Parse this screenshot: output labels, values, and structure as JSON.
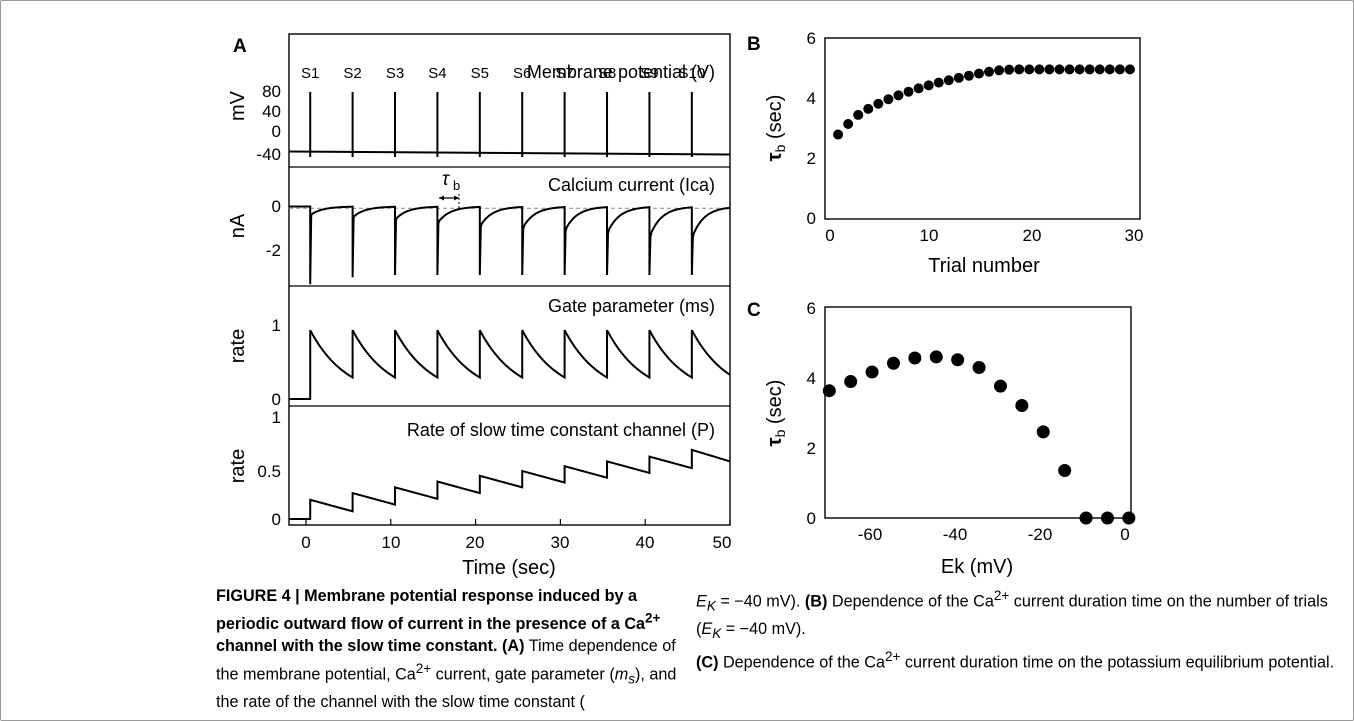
{
  "panels": {
    "A": {
      "letter": "A",
      "xlabel": "Time (sec)",
      "xticks": [
        "0",
        "10",
        "20",
        "30",
        "40",
        "50"
      ],
      "stim_labels": [
        "S1",
        "S2",
        "S3",
        "S4",
        "S5",
        "S6",
        "S7",
        "S8",
        "S9",
        "S10"
      ],
      "tau_label": "τ",
      "tau_sub": "b",
      "subplots": [
        {
          "title": "Membrane potential (V)",
          "ylabel": "mV",
          "yticks": [
            "80",
            "40",
            "0",
            "-40"
          ]
        },
        {
          "title": "Calcium current (Ica)",
          "ylabel": "nA",
          "yticks": [
            "0",
            "-2"
          ]
        },
        {
          "title": "Gate parameter (ms)",
          "ylabel": "rate",
          "yticks": [
            "1",
            "0"
          ]
        },
        {
          "title": "Rate of slow time constant channel (P)",
          "ylabel": "rate",
          "yticks": [
            "1",
            "0.5",
            "0"
          ]
        }
      ]
    },
    "B": {
      "letter": "B",
      "xlabel": "Trial number",
      "ylabel_main": "τ",
      "ylabel_sub": "b",
      "ylabel_unit": " (sec)",
      "xticks": [
        "0",
        "10",
        "20",
        "30"
      ],
      "yticks": [
        "6",
        "4",
        "2",
        "0"
      ]
    },
    "C": {
      "letter": "C",
      "xlabel": "Ek (mV)",
      "ylabel_main": "τ",
      "ylabel_sub": "b",
      "ylabel_unit": " (sec)",
      "xticks": [
        "-60",
        "-40",
        "-20",
        "0"
      ],
      "yticks": [
        "6",
        "4",
        "2",
        "0"
      ]
    }
  },
  "chart_data": [
    {
      "panel": "A",
      "type": "line",
      "title": "Membrane potential (V)",
      "xlabel": "Time (sec)",
      "ylabel": "mV",
      "xlim": [
        -2,
        50
      ],
      "ylim": [
        -60,
        130
      ],
      "stimulus_times": [
        0.5,
        5.5,
        10.5,
        15.5,
        20.5,
        25.5,
        30.5,
        35.5,
        40.5,
        45.5
      ],
      "baseline_mV": -30,
      "spike_peak_mV": 65,
      "spike_trough_mV": -40
    },
    {
      "panel": "A",
      "type": "line",
      "title": "Calcium current (Ica)",
      "xlabel": "Time (sec)",
      "ylabel": "nA",
      "xlim": [
        -2,
        50
      ],
      "ylim": [
        -3.7,
        1.1
      ],
      "stimulus_times": [
        0.5,
        5.5,
        10.5,
        15.5,
        20.5,
        25.5,
        30.5,
        35.5,
        40.5,
        45.5
      ],
      "spike_min_nA": [
        -3.4,
        -3.1,
        -3.0,
        -3.0,
        -3.0,
        -3.0,
        -3.0,
        -3.0,
        -3.0,
        -3.0
      ],
      "post_spike_current_nA": [
        -0.4,
        -0.5,
        -0.6,
        -0.75,
        -0.9,
        -1.0,
        -1.1,
        -1.2,
        -1.35,
        -1.4
      ],
      "dashed_level_nA": -0.1
    },
    {
      "panel": "A",
      "type": "line",
      "title": "Gate parameter (ms)",
      "xlabel": "Time (sec)",
      "ylabel": "rate",
      "xlim": [
        -2,
        50
      ],
      "ylim": [
        -0.1,
        1.25
      ],
      "stimulus_times": [
        0.5,
        5.5,
        10.5,
        15.5,
        20.5,
        25.5,
        30.5,
        35.5,
        40.5,
        45.5
      ],
      "peak": 0.93,
      "trough_before_next": 0.3
    },
    {
      "panel": "A",
      "type": "line",
      "title": "Rate of slow time constant channel (P)",
      "xlabel": "Time (sec)",
      "ylabel": "rate",
      "xlim": [
        -2,
        50
      ],
      "ylim": [
        -0.05,
        1.15
      ],
      "stimulus_times": [
        0.5,
        5.5,
        10.5,
        15.5,
        20.5,
        25.5,
        30.5,
        35.5,
        40.5,
        45.5
      ],
      "peaks": [
        0.2,
        0.27,
        0.33,
        0.39,
        0.45,
        0.5,
        0.55,
        0.6,
        0.65,
        0.72
      ],
      "end_value": 0.6
    },
    {
      "panel": "B",
      "type": "scatter",
      "xlabel": "Trial number",
      "ylabel": "τb (sec)",
      "xlim": [
        -0.3,
        31
      ],
      "ylim": [
        0,
        6
      ],
      "x": [
        1,
        2,
        3,
        4,
        5,
        6,
        7,
        8,
        9,
        10,
        11,
        12,
        13,
        14,
        15,
        16,
        17,
        18,
        19,
        20,
        21,
        22,
        23,
        24,
        25,
        26,
        27,
        28,
        29,
        30
      ],
      "y": [
        2.8,
        3.15,
        3.45,
        3.65,
        3.82,
        3.97,
        4.1,
        4.22,
        4.33,
        4.43,
        4.52,
        4.6,
        4.68,
        4.75,
        4.82,
        4.88,
        4.93,
        4.95,
        4.96,
        4.96,
        4.96,
        4.96,
        4.96,
        4.96,
        4.96,
        4.96,
        4.96,
        4.96,
        4.96,
        4.96
      ]
    },
    {
      "panel": "C",
      "type": "scatter",
      "xlabel": "Ek (mV)",
      "ylabel": "τb (sec)",
      "xlim": [
        -71,
        0.5
      ],
      "ylim": [
        0,
        6
      ],
      "x": [
        -70,
        -65,
        -60,
        -55,
        -50,
        -45,
        -40,
        -35,
        -30,
        -25,
        -20,
        -15,
        -10,
        -5,
        0
      ],
      "y": [
        3.62,
        3.88,
        4.15,
        4.4,
        4.55,
        4.58,
        4.5,
        4.28,
        3.75,
        3.2,
        2.45,
        1.35,
        0,
        0,
        0
      ]
    }
  ],
  "caption": {
    "figure_label": "FIGURE 4 | Membrane potential response induced by a periodic outward flow of current in the presence of a Ca",
    "sup1": "2+",
    "bold_rest": " channel with the slow time constant.",
    "a_label": " (A)",
    "a_text": " Time dependence of the membrane potential, Ca",
    "sup2": "2+",
    "a_text2": " current, gate parameter (",
    "ms_main": "m",
    "ms_sub": "s",
    "a_text3": "), and the rate of the channel with the slow time constant (",
    "ek_main": "E",
    "ek_sub": "K",
    "ek_val": " = −40 mV).",
    "b_label": " (B)",
    "b_text": " Dependence of the Ca",
    "sup3": "2+",
    "b_text2": " current duration time on the number of trials (",
    "b_ek_val": " = −40 mV).",
    "c_label": "(C)",
    "c_text": " Dependence of the Ca",
    "sup4": "2+",
    "c_text2": " current duration time on the potassium equilibrium potential."
  }
}
